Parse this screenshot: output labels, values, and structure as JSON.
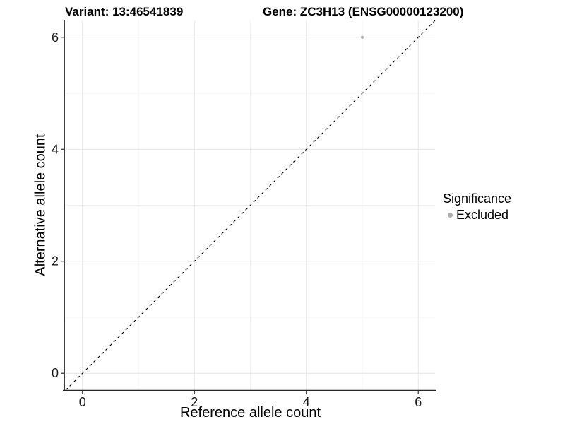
{
  "title": {
    "variant": "Variant: 13:46541839",
    "gene": "Gene: ZC3H13 (ENSG00000123200)"
  },
  "chart_data": {
    "type": "scatter",
    "title_left": "Variant: 13:46541839",
    "title_right": "Gene: ZC3H13 (ENSG00000123200)",
    "xlabel": "Reference allele count",
    "ylabel": "Alternative allele count",
    "xlim": [
      -0.3,
      6.3
    ],
    "ylim": [
      -0.3,
      6.3
    ],
    "x_ticks": [
      0,
      2,
      4,
      6
    ],
    "y_ticks": [
      0,
      2,
      4,
      6
    ],
    "x_minor_ticks": [
      1,
      3,
      5
    ],
    "y_minor_ticks": [
      1,
      3,
      5
    ],
    "grid": "on",
    "reference_line": {
      "type": "identity",
      "style": "dashed",
      "color": "#000000"
    },
    "series": [
      {
        "name": "Excluded",
        "color": "#b0b0b0",
        "points": [
          {
            "x": 5,
            "y": 6
          }
        ]
      }
    ],
    "legend": {
      "title": "Significance",
      "position": "right",
      "items": [
        {
          "label": "Excluded",
          "color": "#b0b0b0"
        }
      ]
    },
    "colors": {
      "axis_line": "#262626",
      "tick_text": "#1a1a1a",
      "grid_major": "#e6e6e6",
      "grid_minor": "#f2f2f2",
      "background": "#ffffff"
    }
  }
}
